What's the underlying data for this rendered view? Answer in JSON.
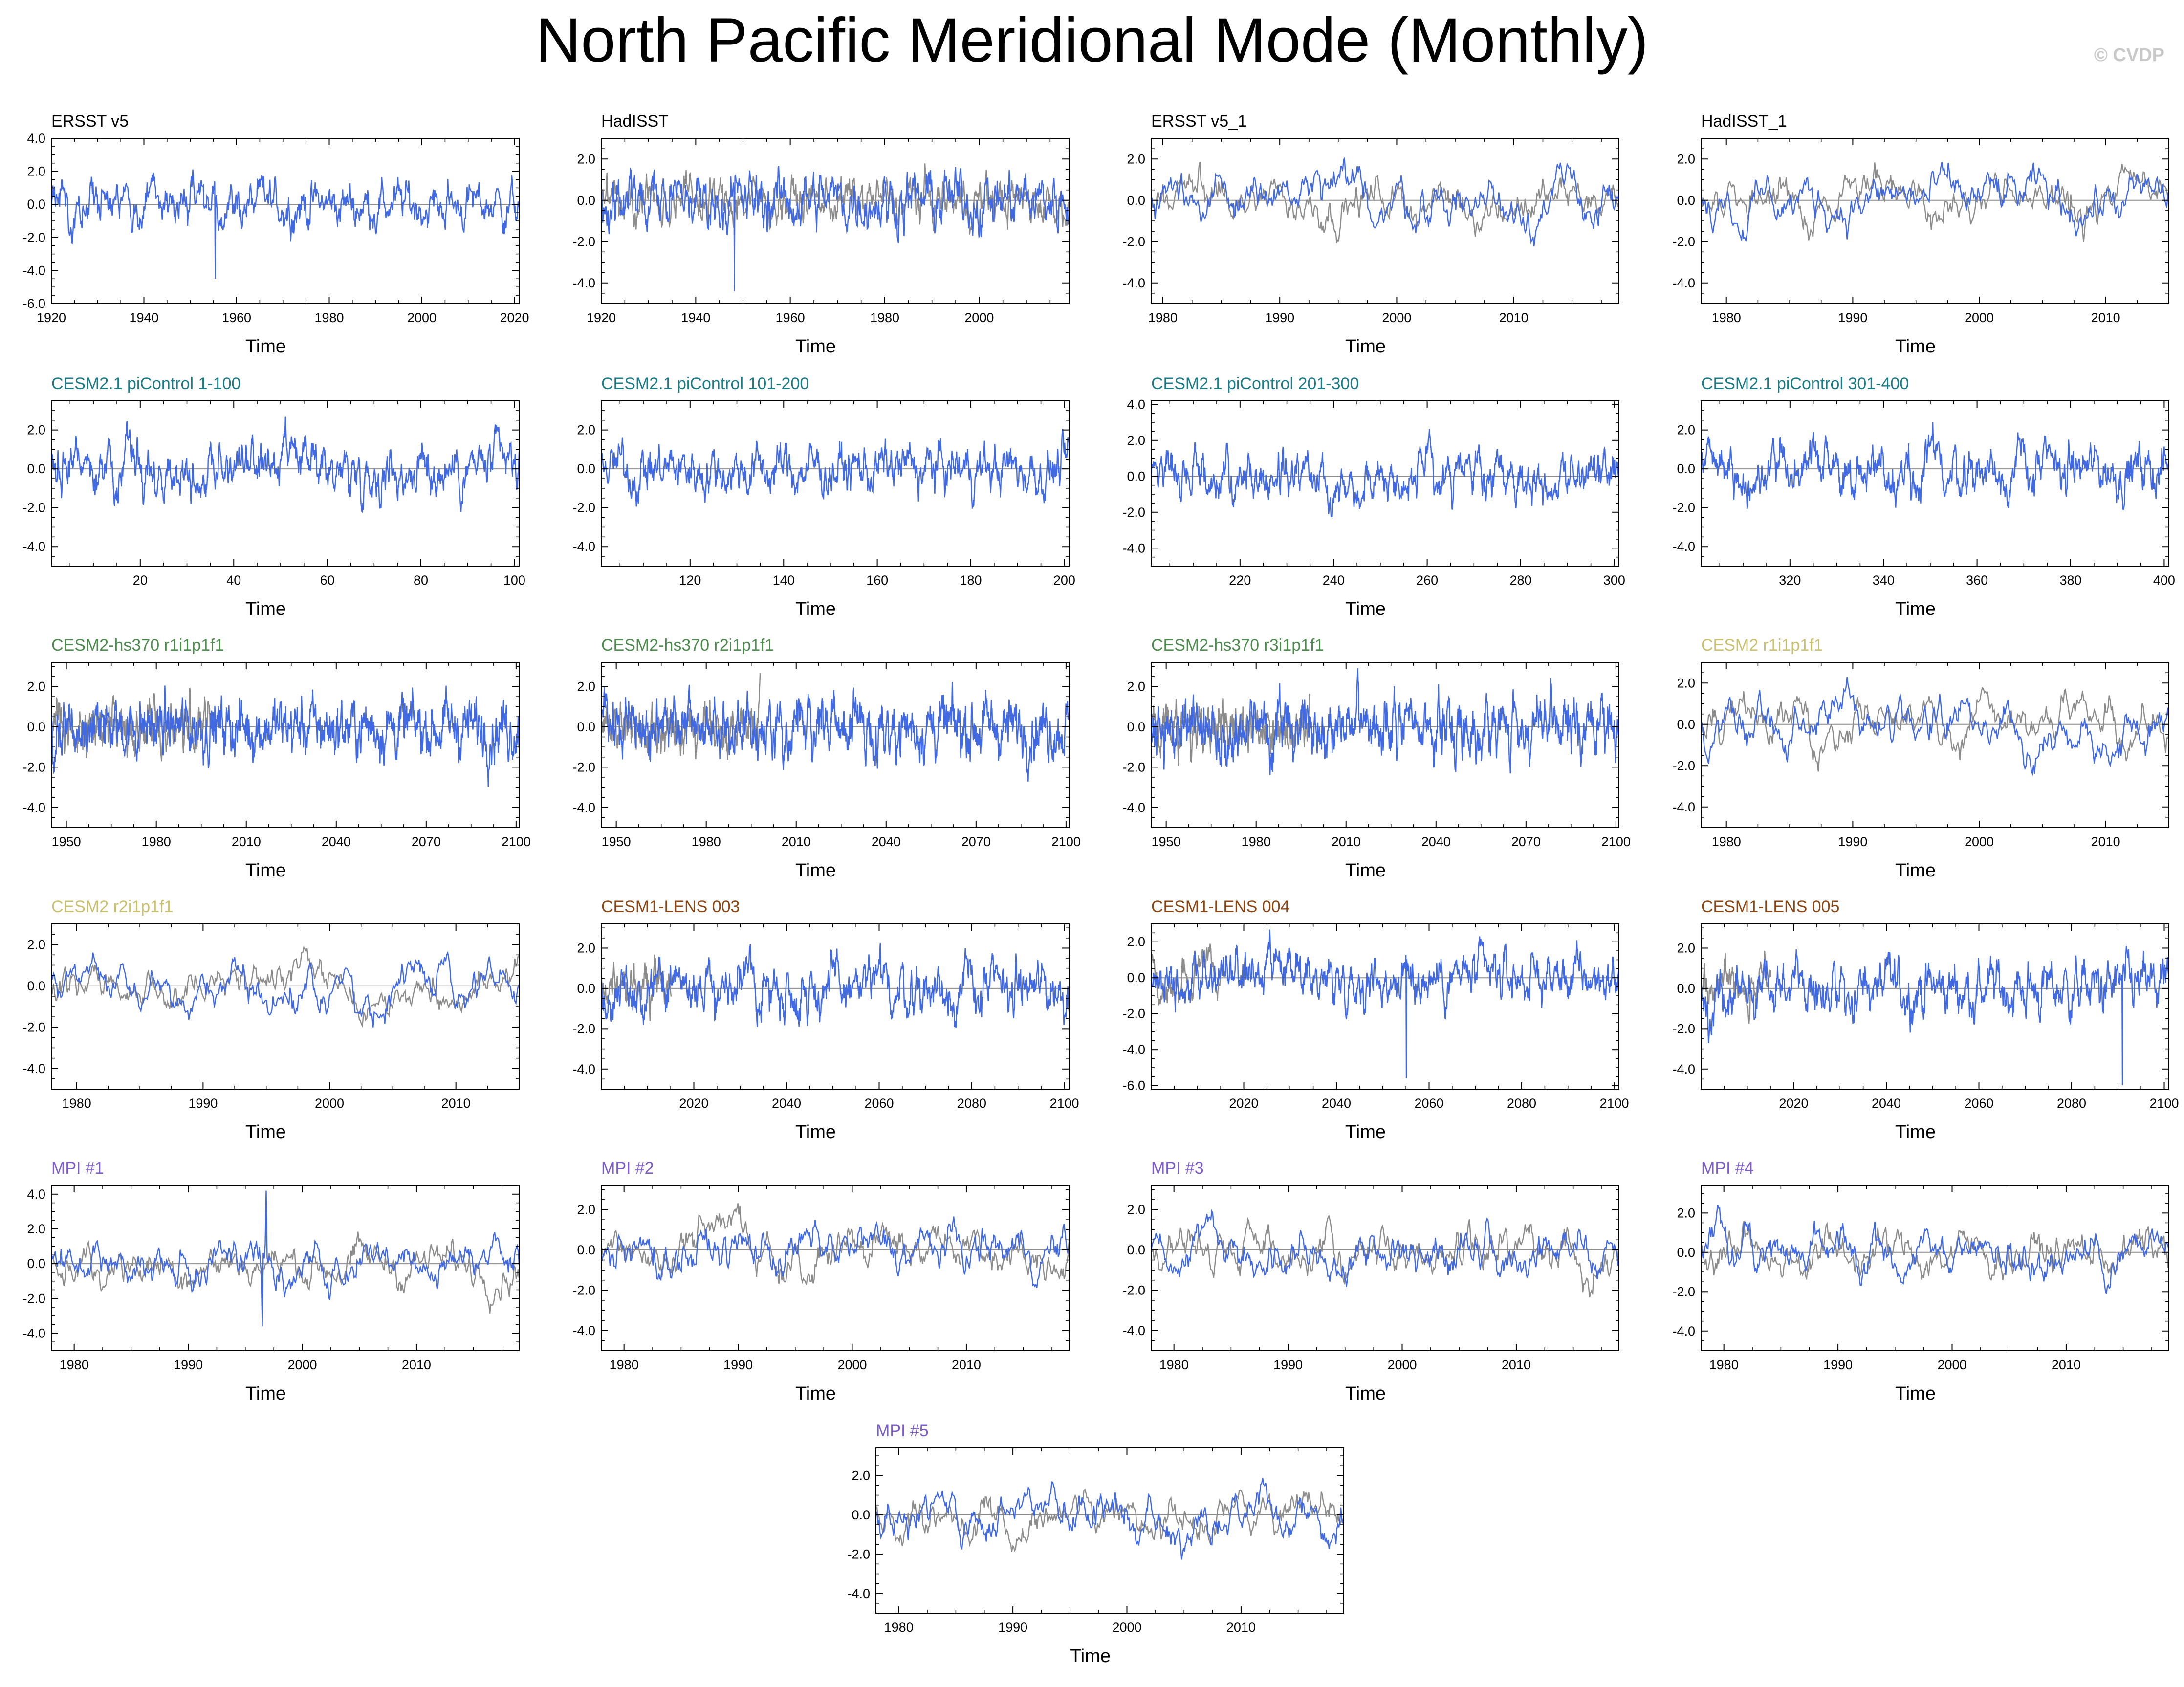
{
  "figure": {
    "title": "North Pacific Meridional Mode (Monthly)",
    "credit": "© CVDP"
  },
  "colors": {
    "series_line": "#4169e1",
    "reference_line": "#8c8c8c",
    "zero_line": "#8c8c8c",
    "frame": "#000000",
    "title_black": "#000000",
    "title_cesm21": "#1a7a86",
    "title_hs370": "#4d8a4d",
    "title_cesm2": "#c8c070",
    "title_lens": "#8b4513",
    "title_mpi": "#7b5cc8"
  },
  "chart_data": [
    {
      "type": "line",
      "title": "ERSST v5",
      "title_color": "#000000",
      "xlabel": "Time",
      "ylabel": "",
      "xlim": [
        1920,
        2021
      ],
      "ylim": [
        -6,
        4
      ],
      "xticks": [
        1920,
        1940,
        1960,
        1980,
        2000,
        2020
      ],
      "yticks": [
        -6,
        -4,
        -2,
        0,
        2,
        4
      ],
      "ytick_labels": [
        "-6.0",
        "-4.0",
        "-2.0",
        "0.0",
        "2.0",
        "4.0"
      ],
      "seed": 1,
      "n": 900,
      "amp": 1.0,
      "rho": 0.82,
      "ref": false,
      "spikes": [
        [
          0.35,
          -4.5
        ]
      ],
      "grid": false,
      "legend": "none"
    },
    {
      "type": "line",
      "title": "HadISST",
      "title_color": "#000000",
      "xlabel": "Time",
      "ylabel": "",
      "xlim": [
        1920,
        2019
      ],
      "ylim": [
        -5,
        3
      ],
      "xticks": [
        1920,
        1940,
        1960,
        1980,
        2000
      ],
      "yticks": [
        -4,
        -2,
        0,
        2
      ],
      "ytick_labels": [
        "-4.0",
        "-2.0",
        "0.0",
        "2.0"
      ],
      "seed": 2,
      "n": 900,
      "amp": 1.0,
      "rho": 0.8,
      "ref": true,
      "ref_amp": 0.8,
      "spikes": [
        [
          0.285,
          -4.4
        ]
      ],
      "grid": false,
      "legend": "none"
    },
    {
      "type": "line",
      "title": "ERSST v5_1",
      "title_color": "#000000",
      "xlabel": "Time",
      "ylabel": "",
      "xlim": [
        1979,
        2019
      ],
      "ylim": [
        -5,
        3
      ],
      "xticks": [
        1980,
        1990,
        2000,
        2010
      ],
      "yticks": [
        -4,
        -2,
        0,
        2
      ],
      "ytick_labels": [
        "-4.0",
        "-2.0",
        "0.0",
        "2.0"
      ],
      "seed": 3,
      "n": 480,
      "amp": 1.0,
      "rho": 0.9,
      "ref": true,
      "ref_amp": 0.9,
      "spikes": [],
      "grid": false,
      "legend": "none"
    },
    {
      "type": "line",
      "title": "HadISST_1",
      "title_color": "#000000",
      "xlabel": "Time",
      "ylabel": "",
      "xlim": [
        1978,
        2015
      ],
      "ylim": [
        -5,
        3
      ],
      "xticks": [
        1980,
        1990,
        2000,
        2010
      ],
      "yticks": [
        -4,
        -2,
        0,
        2
      ],
      "ytick_labels": [
        "-4.0",
        "-2.0",
        "0.0",
        "2.0"
      ],
      "seed": 4,
      "n": 440,
      "amp": 1.0,
      "rho": 0.9,
      "ref": true,
      "ref_amp": 0.95,
      "spikes": [],
      "grid": false,
      "legend": "none"
    },
    {
      "type": "line",
      "title": "CESM2.1 piControl 1-100",
      "title_color": "#1a7a86",
      "xlabel": "Time",
      "ylabel": "",
      "xlim": [
        1,
        101
      ],
      "ylim": [
        -5,
        3.5
      ],
      "xticks": [
        20,
        40,
        60,
        80,
        100
      ],
      "yticks": [
        -4,
        -2,
        0,
        2
      ],
      "ytick_labels": [
        "-4.0",
        "-2.0",
        "0.0",
        "2.0"
      ],
      "seed": 5,
      "n": 1200,
      "amp": 1.0,
      "rho": 0.88,
      "ref": false,
      "spikes": [],
      "grid": false,
      "legend": "none"
    },
    {
      "type": "line",
      "title": "CESM2.1 piControl 101-200",
      "title_color": "#1a7a86",
      "xlabel": "Time",
      "ylabel": "",
      "xlim": [
        101,
        201
      ],
      "ylim": [
        -5,
        3.5
      ],
      "xticks": [
        120,
        140,
        160,
        180,
        200
      ],
      "yticks": [
        -4,
        -2,
        0,
        2
      ],
      "ytick_labels": [
        "-4.0",
        "-2.0",
        "0.0",
        "2.0"
      ],
      "seed": 6,
      "n": 1200,
      "amp": 1.0,
      "rho": 0.88,
      "ref": false,
      "spikes": [],
      "grid": false,
      "legend": "none"
    },
    {
      "type": "line",
      "title": "CESM2.1 piControl 201-300",
      "title_color": "#1a7a86",
      "xlabel": "Time",
      "ylabel": "",
      "xlim": [
        201,
        301
      ],
      "ylim": [
        -5,
        4.2
      ],
      "xticks": [
        220,
        240,
        260,
        280,
        300
      ],
      "yticks": [
        -4,
        -2,
        0,
        2,
        4
      ],
      "ytick_labels": [
        "-4.0",
        "-2.0",
        "0.0",
        "2.0",
        "4.0"
      ],
      "seed": 7,
      "n": 1200,
      "amp": 1.0,
      "rho": 0.88,
      "ref": false,
      "spikes": [],
      "grid": false,
      "legend": "none"
    },
    {
      "type": "line",
      "title": "CESM2.1 piControl 301-400",
      "title_color": "#1a7a86",
      "xlabel": "Time",
      "ylabel": "",
      "xlim": [
        301,
        401
      ],
      "ylim": [
        -5,
        3.5
      ],
      "xticks": [
        320,
        340,
        360,
        380,
        400
      ],
      "yticks": [
        -4,
        -2,
        0,
        2
      ],
      "ytick_labels": [
        "-4.0",
        "-2.0",
        "0.0",
        "2.0"
      ],
      "seed": 8,
      "n": 1200,
      "amp": 1.0,
      "rho": 0.88,
      "ref": false,
      "spikes": [],
      "grid": false,
      "legend": "none"
    },
    {
      "type": "line",
      "title": "CESM2-hs370 r1i1p1f1",
      "title_color": "#4d8a4d",
      "xlabel": "Time",
      "ylabel": "",
      "xlim": [
        1945,
        2101
      ],
      "ylim": [
        -5,
        3.2
      ],
      "xticks": [
        1950,
        1980,
        2010,
        2040,
        2070,
        2100
      ],
      "yticks": [
        -4,
        -2,
        0,
        2
      ],
      "ytick_labels": [
        "-4.0",
        "-2.0",
        "0.0",
        "2.0"
      ],
      "seed": 9,
      "n": 1500,
      "amp": 1.0,
      "rho": 0.8,
      "ref": true,
      "ref_amp": 0.9,
      "ref_end": 0.34,
      "spikes": [],
      "grid": false,
      "legend": "none"
    },
    {
      "type": "line",
      "title": "CESM2-hs370 r2i1p1f1",
      "title_color": "#4d8a4d",
      "xlabel": "Time",
      "ylabel": "",
      "xlim": [
        1945,
        2101
      ],
      "ylim": [
        -5,
        3.2
      ],
      "xticks": [
        1950,
        1980,
        2010,
        2040,
        2070,
        2100
      ],
      "yticks": [
        -4,
        -2,
        0,
        2
      ],
      "ytick_labels": [
        "-4.0",
        "-2.0",
        "0.0",
        "2.0"
      ],
      "seed": 10,
      "n": 1500,
      "amp": 1.0,
      "rho": 0.8,
      "ref": true,
      "ref_amp": 0.9,
      "ref_end": 0.34,
      "spikes": [],
      "grid": false,
      "legend": "none"
    },
    {
      "type": "line",
      "title": "CESM2-hs370 r3i1p1f1",
      "title_color": "#4d8a4d",
      "xlabel": "Time",
      "ylabel": "",
      "xlim": [
        1945,
        2101
      ],
      "ylim": [
        -5,
        3.2
      ],
      "xticks": [
        1950,
        1980,
        2010,
        2040,
        2070,
        2100
      ],
      "yticks": [
        -4,
        -2,
        0,
        2
      ],
      "ytick_labels": [
        "-4.0",
        "-2.0",
        "0.0",
        "2.0"
      ],
      "seed": 11,
      "n": 1500,
      "amp": 1.0,
      "rho": 0.8,
      "ref": true,
      "ref_amp": 0.9,
      "ref_end": 0.34,
      "spikes": [],
      "grid": false,
      "legend": "none"
    },
    {
      "type": "line",
      "title": "CESM2 r1i1p1f1",
      "title_color": "#c8c070",
      "xlabel": "Time",
      "ylabel": "",
      "xlim": [
        1978,
        2015
      ],
      "ylim": [
        -5,
        3
      ],
      "xticks": [
        1980,
        1990,
        2000,
        2010
      ],
      "yticks": [
        -4,
        -2,
        0,
        2
      ],
      "ytick_labels": [
        "-4.0",
        "-2.0",
        "0.0",
        "2.0"
      ],
      "seed": 12,
      "n": 440,
      "amp": 1.0,
      "rho": 0.9,
      "ref": true,
      "ref_amp": 0.95,
      "spikes": [],
      "grid": false,
      "legend": "none"
    },
    {
      "type": "line",
      "title": "CESM2 r2i1p1f1",
      "title_color": "#c8c070",
      "xlabel": "Time",
      "ylabel": "",
      "xlim": [
        1978,
        2015
      ],
      "ylim": [
        -5,
        3
      ],
      "xticks": [
        1980,
        1990,
        2000,
        2010
      ],
      "yticks": [
        -4,
        -2,
        0,
        2
      ],
      "ytick_labels": [
        "-4.0",
        "-2.0",
        "0.0",
        "2.0"
      ],
      "seed": 13,
      "n": 440,
      "amp": 1.0,
      "rho": 0.92,
      "ref": true,
      "ref_amp": 0.95,
      "spikes": [],
      "grid": false,
      "legend": "none"
    },
    {
      "type": "line",
      "title": "CESM1-LENS 003",
      "title_color": "#8b4513",
      "xlabel": "Time",
      "ylabel": "",
      "xlim": [
        2000,
        2101
      ],
      "ylim": [
        -5,
        3.2
      ],
      "xticks": [
        2020,
        2040,
        2060,
        2080,
        2100
      ],
      "yticks": [
        -4,
        -2,
        0,
        2
      ],
      "ytick_labels": [
        "-4.0",
        "-2.0",
        "0.0",
        "2.0"
      ],
      "seed": 14,
      "n": 1200,
      "amp": 1.0,
      "rho": 0.85,
      "ref": true,
      "ref_amp": 0.9,
      "ref_end": 0.15,
      "spikes": [],
      "grid": false,
      "legend": "none"
    },
    {
      "type": "line",
      "title": "CESM1-LENS 004",
      "title_color": "#8b4513",
      "xlabel": "Time",
      "ylabel": "",
      "xlim": [
        2000,
        2101
      ],
      "ylim": [
        -6.2,
        3
      ],
      "xticks": [
        2020,
        2040,
        2060,
        2080,
        2100
      ],
      "yticks": [
        -6,
        -4,
        -2,
        0,
        2
      ],
      "ytick_labels": [
        "-6.0",
        "-4.0",
        "-2.0",
        "0.0",
        "2.0"
      ],
      "seed": 15,
      "n": 1200,
      "amp": 1.0,
      "rho": 0.85,
      "ref": true,
      "ref_amp": 0.9,
      "ref_end": 0.15,
      "spikes": [
        [
          0.545,
          -5.6
        ]
      ],
      "grid": false,
      "legend": "none"
    },
    {
      "type": "line",
      "title": "CESM1-LENS 005",
      "title_color": "#8b4513",
      "xlabel": "Time",
      "ylabel": "",
      "xlim": [
        2000,
        2101
      ],
      "ylim": [
        -5,
        3.2
      ],
      "xticks": [
        2020,
        2040,
        2060,
        2080,
        2100
      ],
      "yticks": [
        -4,
        -2,
        0,
        2
      ],
      "ytick_labels": [
        "-4.0",
        "-2.0",
        "0.0",
        "2.0"
      ],
      "seed": 16,
      "n": 1200,
      "amp": 1.0,
      "rho": 0.85,
      "ref": true,
      "ref_amp": 0.9,
      "ref_end": 0.15,
      "spikes": [
        [
          0.9,
          -4.8
        ]
      ],
      "grid": false,
      "legend": "none"
    },
    {
      "type": "line",
      "title": "MPI #1",
      "title_color": "#7b5cc8",
      "xlabel": "Time",
      "ylabel": "",
      "xlim": [
        1978,
        2019
      ],
      "ylim": [
        -5,
        4.5
      ],
      "xticks": [
        1980,
        1990,
        2000,
        2010
      ],
      "yticks": [
        -4,
        -2,
        0,
        2,
        4
      ],
      "ytick_labels": [
        "-4.0",
        "-2.0",
        "0.0",
        "2.0",
        "4.0"
      ],
      "seed": 17,
      "n": 480,
      "amp": 1.0,
      "rho": 0.88,
      "ref": true,
      "ref_amp": 0.95,
      "spikes": [
        [
          0.46,
          4.2
        ],
        [
          0.45,
          -3.6
        ]
      ],
      "grid": false,
      "legend": "none"
    },
    {
      "type": "line",
      "title": "MPI #2",
      "title_color": "#7b5cc8",
      "xlabel": "Time",
      "ylabel": "",
      "xlim": [
        1978,
        2019
      ],
      "ylim": [
        -5,
        3.2
      ],
      "xticks": [
        1980,
        1990,
        2000,
        2010
      ],
      "yticks": [
        -4,
        -2,
        0,
        2
      ],
      "ytick_labels": [
        "-4.0",
        "-2.0",
        "0.0",
        "2.0"
      ],
      "seed": 18,
      "n": 480,
      "amp": 1.0,
      "rho": 0.9,
      "ref": true,
      "ref_amp": 0.95,
      "spikes": [],
      "grid": false,
      "legend": "none"
    },
    {
      "type": "line",
      "title": "MPI #3",
      "title_color": "#7b5cc8",
      "xlabel": "Time",
      "ylabel": "",
      "xlim": [
        1978,
        2019
      ],
      "ylim": [
        -5,
        3.2
      ],
      "xticks": [
        1980,
        1990,
        2000,
        2010
      ],
      "yticks": [
        -4,
        -2,
        0,
        2
      ],
      "ytick_labels": [
        "-4.0",
        "-2.0",
        "0.0",
        "2.0"
      ],
      "seed": 19,
      "n": 480,
      "amp": 1.0,
      "rho": 0.9,
      "ref": true,
      "ref_amp": 0.95,
      "spikes": [],
      "grid": false,
      "legend": "none"
    },
    {
      "type": "line",
      "title": "MPI #4",
      "title_color": "#7b5cc8",
      "xlabel": "Time",
      "ylabel": "",
      "xlim": [
        1978,
        2019
      ],
      "ylim": [
        -5,
        3.4
      ],
      "xticks": [
        1980,
        1990,
        2000,
        2010
      ],
      "yticks": [
        -4,
        -2,
        0,
        2
      ],
      "ytick_labels": [
        "-4.0",
        "-2.0",
        "0.0",
        "2.0"
      ],
      "seed": 20,
      "n": 480,
      "amp": 1.0,
      "rho": 0.9,
      "ref": true,
      "ref_amp": 0.95,
      "spikes": [],
      "grid": false,
      "legend": "none"
    },
    {
      "type": "line",
      "title": "MPI #5",
      "title_color": "#7b5cc8",
      "xlabel": "Time",
      "ylabel": "",
      "xlim": [
        1978,
        2019
      ],
      "ylim": [
        -5,
        3.4
      ],
      "xticks": [
        1980,
        1990,
        2000,
        2010
      ],
      "yticks": [
        -4,
        -2,
        0,
        2
      ],
      "ytick_labels": [
        "-4.0",
        "-2.0",
        "0.0",
        "2.0"
      ],
      "seed": 21,
      "n": 480,
      "amp": 1.0,
      "rho": 0.9,
      "ref": true,
      "ref_amp": 0.95,
      "spikes": [],
      "grid": false,
      "legend": "none"
    }
  ]
}
